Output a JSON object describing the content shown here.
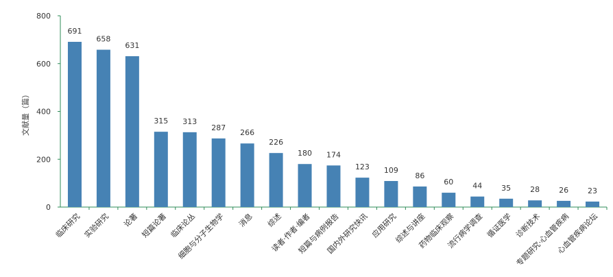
{
  "chart_data": {
    "type": "bar",
    "title": "",
    "xlabel": "",
    "ylabel": "文献量（篇）",
    "ylim": [
      0,
      800
    ],
    "yticks": [
      0,
      200,
      400,
      600,
      800
    ],
    "grid": false,
    "legend": "none",
    "bar_color": "#4682b4",
    "axis_color": "#2e8b57",
    "categories": [
      "临床研究",
      "实验研究",
      "论著",
      "短篇论著",
      "临床论丛",
      "细胞与分子生物学",
      "消息",
      "综述",
      "读者·作者·编者",
      "短篇与病例报告",
      "国内外研究快讯",
      "应用研究",
      "综述与讲座",
      "药物临床观察",
      "流行病学调查",
      "循证医学",
      "诊断技术",
      "专题研究·心血管疾病",
      "心血管疾病论坛"
    ],
    "values": [
      691,
      658,
      631,
      315,
      313,
      287,
      266,
      226,
      180,
      174,
      123,
      109,
      86,
      60,
      44,
      35,
      28,
      26,
      23
    ]
  }
}
